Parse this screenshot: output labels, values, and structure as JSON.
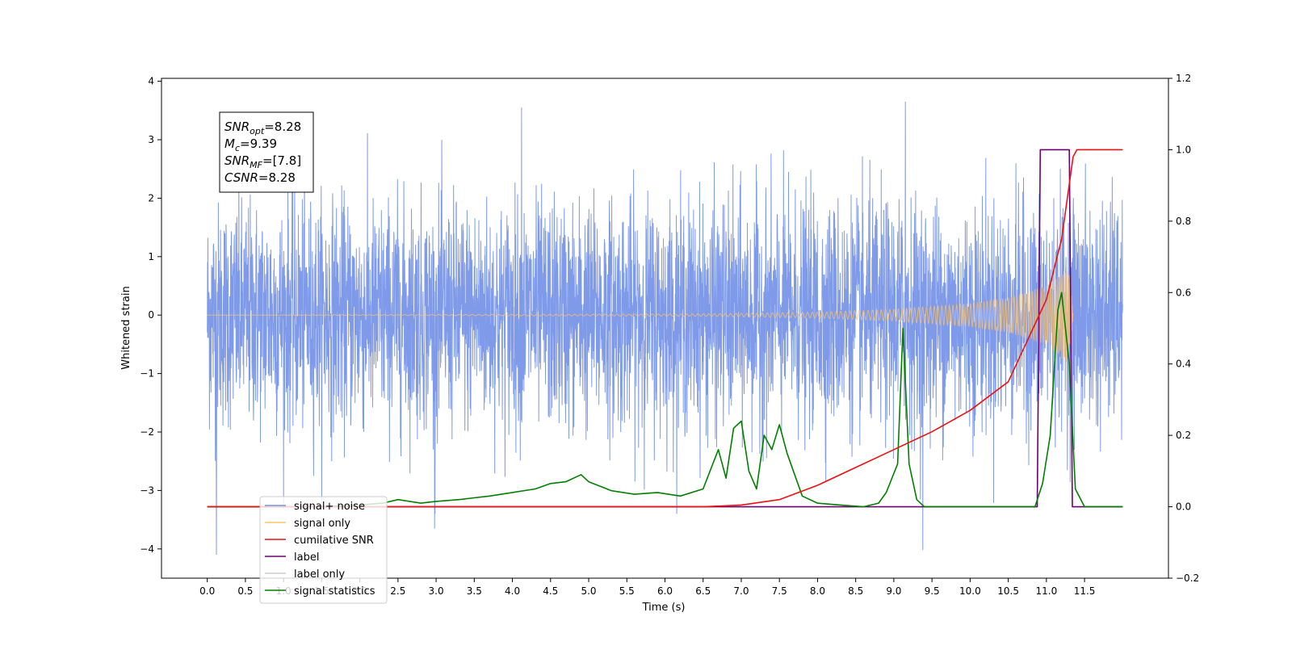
{
  "chart_data": {
    "type": "line",
    "xlabel": "Time (s)",
    "ylabel": "Whitened strain",
    "xlim": [
      -0.6,
      12.6
    ],
    "ylim": [
      -4.5,
      4.05
    ],
    "y2lim": [
      -0.2,
      1.2
    ],
    "x_ticks": [
      "0.0",
      "0.5",
      "1.0",
      "1.5",
      "2.0",
      "2.5",
      "3.0",
      "3.5",
      "4.0",
      "4.5",
      "5.0",
      "5.5",
      "6.0",
      "6.5",
      "7.0",
      "7.5",
      "8.0",
      "8.5",
      "9.0",
      "9.5",
      "10.0",
      "10.5",
      "11.0",
      "11.5"
    ],
    "y_ticks": [
      "−4",
      "−3",
      "−2",
      "−1",
      "0",
      "1",
      "2",
      "3",
      "4"
    ],
    "y2_ticks": [
      "−0.2",
      "0.0",
      "0.2",
      "0.4",
      "0.6",
      "0.8",
      "1.0",
      "1.2"
    ],
    "annotation": {
      "lines": [
        {
          "base": "SNR",
          "sub": "opt",
          "value": "=8.28"
        },
        {
          "base": "M",
          "sub": "c",
          "value": "=9.39"
        },
        {
          "base": "SNR",
          "sub": "MF",
          "value": "=[7.8]"
        },
        {
          "base": "CSNR",
          "sub": "",
          "value": "=8.28"
        }
      ]
    },
    "legend": {
      "position": "lower-left",
      "entries": [
        {
          "label": "signal+ noise",
          "color": "#7795e8"
        },
        {
          "label": "signal only",
          "color": "#ffc36a"
        },
        {
          "label": "cumilative SNR",
          "color": "#ee1111"
        },
        {
          "label": "label",
          "color": "#6f006f"
        },
        {
          "label": "label only",
          "color": "#cccccc"
        },
        {
          "label": "signal statistics",
          "color": "#008000"
        }
      ]
    },
    "series": [
      {
        "name": "signal+ noise",
        "axis": "left",
        "color": "#7795e8",
        "x_range": [
          0.0,
          12.0
        ],
        "envelope_approx": [
          -2.6,
          2.5
        ],
        "peaks": [
          [
            0.12,
            -4.1
          ],
          [
            4.12,
            3.55
          ],
          [
            9.15,
            3.65
          ],
          [
            9.38,
            -4.02
          ],
          [
            2.98,
            -3.65
          ]
        ]
      },
      {
        "name": "signal only",
        "axis": "left",
        "color": "#ffc36a",
        "x_range": [
          0.0,
          11.35
        ],
        "amplitude": [
          [
            0.0,
            0.0
          ],
          [
            6.5,
            0.02
          ],
          [
            8.0,
            0.05
          ],
          [
            9.0,
            0.1
          ],
          [
            10.0,
            0.2
          ],
          [
            10.5,
            0.3
          ],
          [
            11.0,
            0.5
          ],
          [
            11.3,
            0.85
          ],
          [
            11.35,
            0.0
          ]
        ]
      },
      {
        "name": "cumilative SNR",
        "axis": "right",
        "color": "#ee1111",
        "x": [
          0,
          6.5,
          7.0,
          7.5,
          8.0,
          8.5,
          9.0,
          9.5,
          10.0,
          10.5,
          11.0,
          11.2,
          11.35,
          11.4,
          12.0
        ],
        "y": [
          0,
          0.0,
          0.005,
          0.02,
          0.06,
          0.11,
          0.16,
          0.21,
          0.27,
          0.35,
          0.58,
          0.75,
          0.98,
          1.0,
          1.0
        ]
      },
      {
        "name": "label",
        "axis": "right",
        "color": "#6f006f",
        "x": [
          0,
          10.88,
          10.92,
          11.3,
          11.34,
          12.0
        ],
        "y": [
          0,
          0,
          1.0,
          1.0,
          0,
          0
        ]
      },
      {
        "name": "signal statistics",
        "axis": "right",
        "color": "#008000",
        "x": [
          0.0,
          1.0,
          1.5,
          2.0,
          2.3,
          2.5,
          2.8,
          3.0,
          3.3,
          3.5,
          3.7,
          4.0,
          4.3,
          4.5,
          4.7,
          4.9,
          5.0,
          5.3,
          5.6,
          5.9,
          6.2,
          6.5,
          6.7,
          6.8,
          6.9,
          7.0,
          7.1,
          7.2,
          7.3,
          7.4,
          7.5,
          7.6,
          7.8,
          8.0,
          8.3,
          8.6,
          8.8,
          8.9,
          9.05,
          9.12,
          9.2,
          9.3,
          9.4,
          9.6,
          10.0,
          10.5,
          10.85,
          10.95,
          11.05,
          11.15,
          11.2,
          11.3,
          11.38,
          11.5,
          12.0
        ],
        "y": [
          0.0,
          0.0,
          0.0,
          0.005,
          0.01,
          0.02,
          0.01,
          0.015,
          0.02,
          0.025,
          0.03,
          0.04,
          0.05,
          0.065,
          0.07,
          0.09,
          0.07,
          0.045,
          0.035,
          0.04,
          0.03,
          0.05,
          0.16,
          0.08,
          0.22,
          0.24,
          0.1,
          0.05,
          0.2,
          0.16,
          0.23,
          0.15,
          0.03,
          0.01,
          0.005,
          0.0,
          0.01,
          0.04,
          0.12,
          0.5,
          0.12,
          0.02,
          0.0,
          0.0,
          0.0,
          0.0,
          0.0,
          0.065,
          0.2,
          0.55,
          0.6,
          0.4,
          0.05,
          0.0,
          0.0
        ]
      }
    ]
  }
}
